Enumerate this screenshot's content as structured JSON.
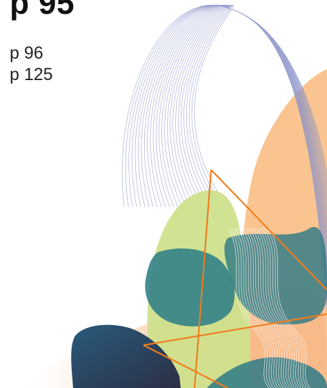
{
  "heading": "p 95",
  "page_refs": [
    "p 96",
    "p 125"
  ],
  "artwork": {
    "shapes": [
      "wireframe-dome",
      "orange-blob",
      "green-blob",
      "teal-blob",
      "navy-blob",
      "orange-triangle"
    ],
    "colors": {
      "orange": "#f9c48f",
      "green": "#cfe08c",
      "teal": "#2e7e86",
      "navy": "#2c3e57",
      "line_orange": "#f07c1e",
      "wire_blue": "#8b93c9"
    }
  }
}
